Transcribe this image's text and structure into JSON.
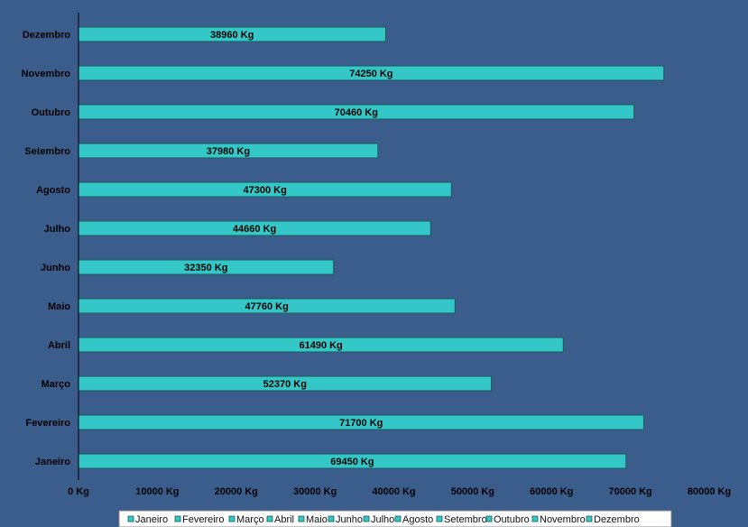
{
  "chart_data": {
    "type": "bar",
    "orientation": "horizontal",
    "title": "",
    "xlabel": "",
    "ylabel": "",
    "categories": [
      "Janeiro",
      "Fevereiro",
      "Março",
      "Abril",
      "Maio",
      "Junho",
      "Julho",
      "Agosto",
      "Setembro",
      "Outubro",
      "Novembro",
      "Dezembro"
    ],
    "values": [
      69450,
      71700,
      52370,
      61490,
      47760,
      32350,
      44660,
      47300,
      37980,
      70460,
      74250,
      38960
    ],
    "data_labels": [
      "69450 Kg",
      "71700 Kg",
      "52370 Kg",
      "61490 Kg",
      "47760 Kg",
      "32350 Kg",
      "44660 Kg",
      "47300 Kg",
      "37980 Kg",
      "70460 Kg",
      "74250 Kg",
      "38960 Kg"
    ],
    "xlim": [
      0,
      80000
    ],
    "x_ticks": [
      0,
      10000,
      20000,
      30000,
      40000,
      50000,
      60000,
      70000,
      80000
    ],
    "x_tick_labels": [
      "0 Kg",
      "10000 Kg",
      "20000 Kg",
      "30000 Kg",
      "40000 Kg",
      "50000 Kg",
      "60000 Kg",
      "70000 Kg",
      "80000 Kg"
    ],
    "grid": false,
    "legend": {
      "placement": "bottom",
      "entries": [
        "Janeiro",
        "Fevereiro",
        "Março",
        "Abril",
        "Maio",
        "Junho",
        "Julho",
        "Agosto",
        "Setembro",
        "Outubro",
        "Novembro",
        "Dezembro"
      ]
    },
    "colors": {
      "background": "#3a5d8c",
      "bar": "#33c7c7",
      "bar_border": "#1e5a5a",
      "axis": "#000000"
    }
  }
}
